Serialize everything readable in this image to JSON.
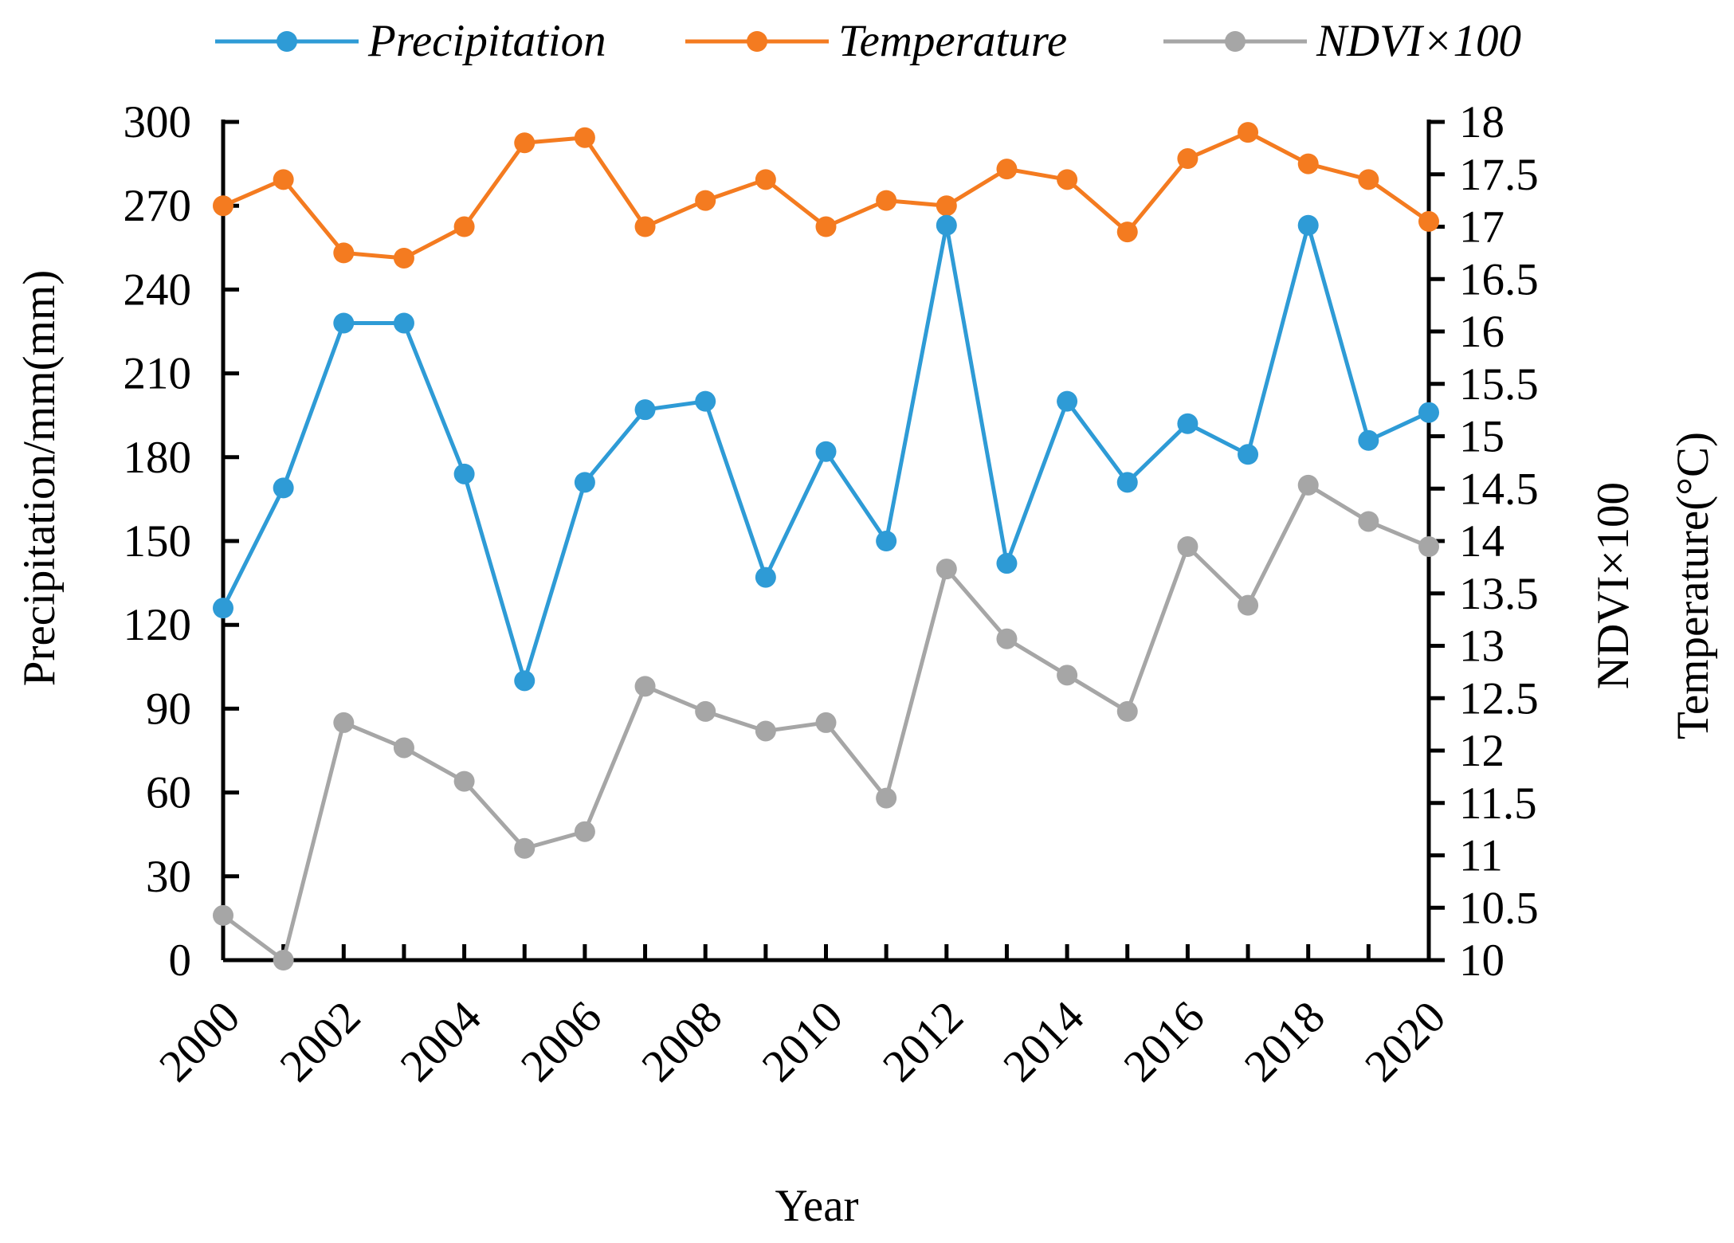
{
  "chart_data": {
    "type": "line",
    "x": [
      2000,
      2001,
      2002,
      2003,
      2004,
      2005,
      2006,
      2007,
      2008,
      2009,
      2010,
      2011,
      2012,
      2013,
      2014,
      2015,
      2016,
      2017,
      2018,
      2019,
      2020
    ],
    "x_tick_labels": [
      "2000",
      "2002",
      "2004",
      "2006",
      "2008",
      "2010",
      "2012",
      "2014",
      "2016",
      "2018",
      "2020"
    ],
    "xlabel": "Year",
    "xlim": [
      2000,
      2020
    ],
    "ylabel_left": "Precipitation/mm(mm)",
    "ylim_left": [
      0,
      300
    ],
    "y_ticks_left": [
      "0",
      "30",
      "60",
      "90",
      "120",
      "150",
      "180",
      "210",
      "240",
      "270",
      "300"
    ],
    "ylabel_right_1": "NDVI×100",
    "ylabel_right_2": "Temperature(°C)",
    "ylim_right": [
      10,
      18
    ],
    "y_ticks_right": [
      "10",
      "10.5",
      "11",
      "11.5",
      "12",
      "12.5",
      "13",
      "13.5",
      "14",
      "14.5",
      "15",
      "15.5",
      "16",
      "16.5",
      "17",
      "17.5",
      "18"
    ],
    "grid": false,
    "legend_position": "top",
    "series": [
      {
        "name": "Precipitation",
        "axis": "left",
        "color": "#2E9BD6",
        "values": [
          126,
          169,
          228,
          228,
          174,
          100,
          171,
          197,
          200,
          137,
          182,
          150,
          263,
          142,
          200,
          171,
          192,
          181,
          263,
          186,
          196
        ]
      },
      {
        "name": "Temperature",
        "axis": "right",
        "color": "#F47B20",
        "values": [
          17.2,
          17.45,
          16.75,
          16.7,
          17.0,
          17.8,
          17.85,
          17.0,
          17.25,
          17.45,
          17.0,
          17.25,
          17.2,
          17.55,
          17.45,
          16.95,
          17.65,
          17.9,
          17.6,
          17.45,
          17.05
        ]
      },
      {
        "name": "NDVI×100",
        "axis": "left",
        "color": "#A6A6A6",
        "values": [
          16,
          0,
          85,
          76,
          64,
          40,
          46,
          98,
          89,
          82,
          85,
          58,
          140,
          115,
          102,
          89,
          148,
          127,
          170,
          157,
          148
        ]
      }
    ]
  }
}
